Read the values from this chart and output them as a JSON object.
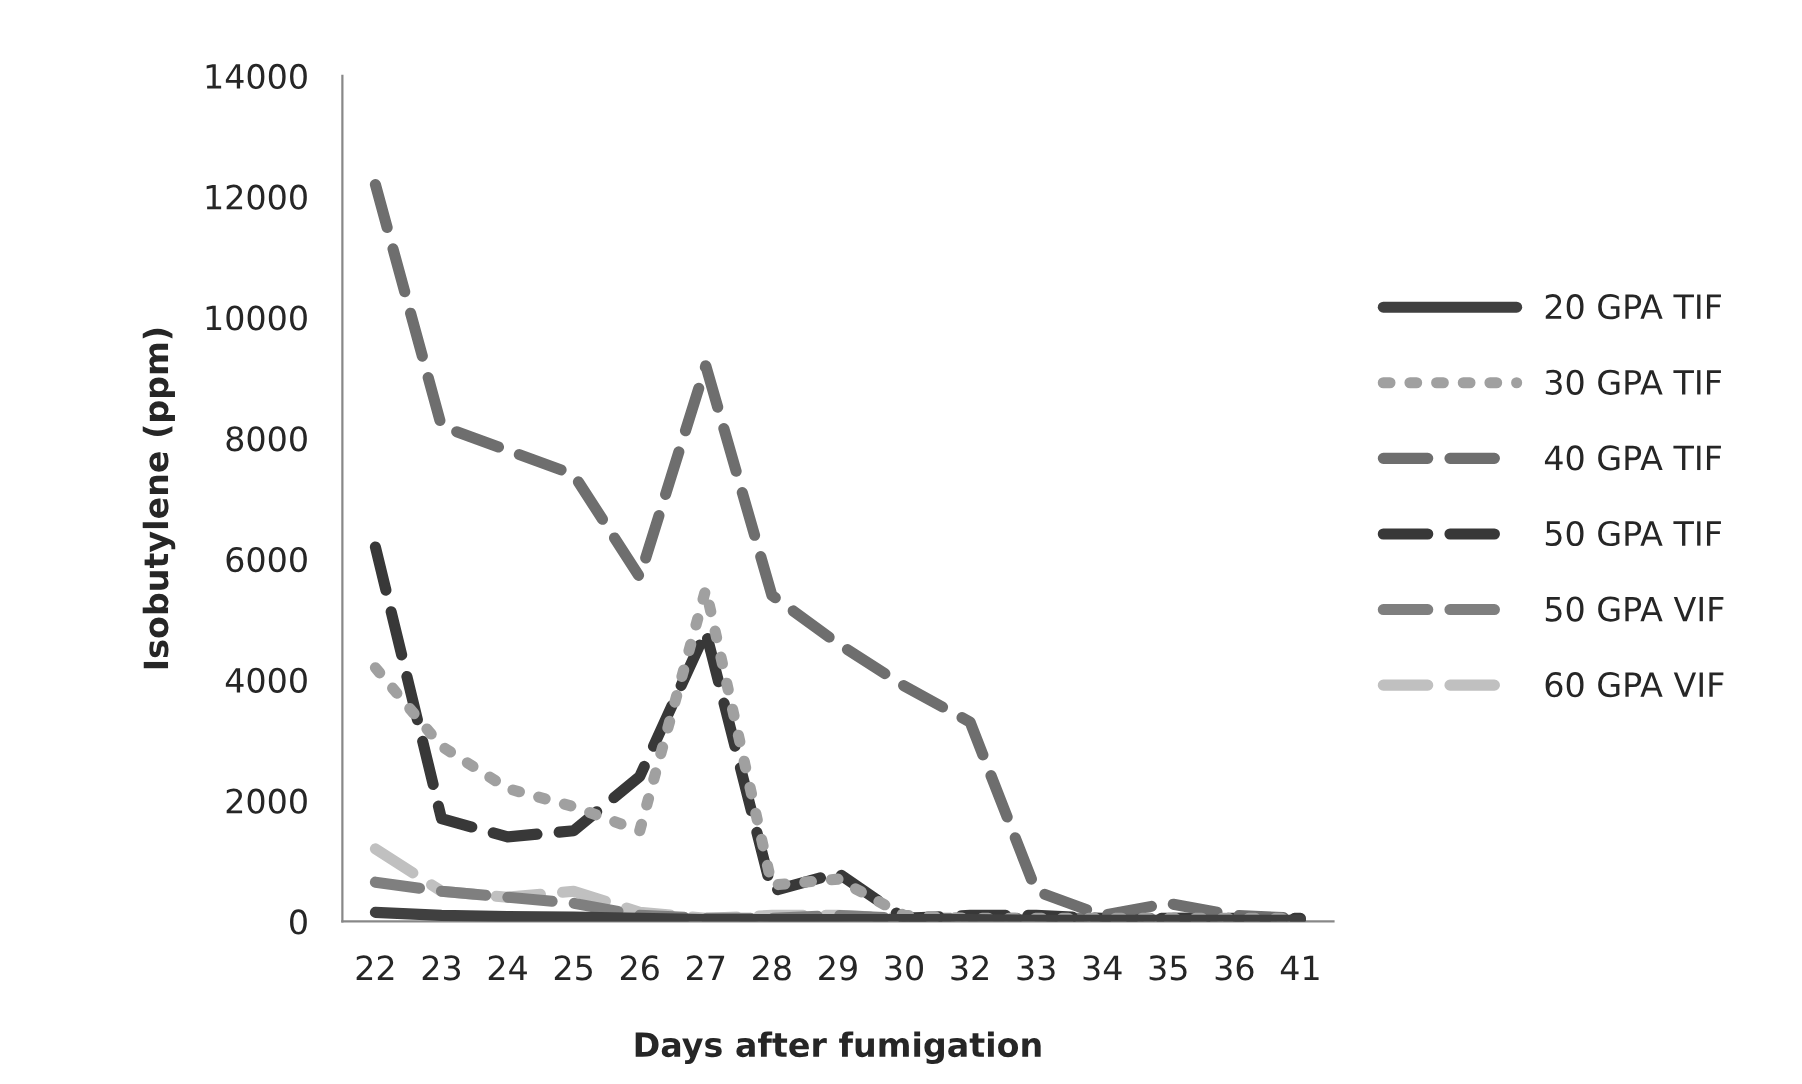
{
  "chart_data": {
    "type": "line",
    "xlabel": "Days after fumigation",
    "ylabel": "Isobutylene (ppm)",
    "categories": [
      "22",
      "23",
      "24",
      "25",
      "26",
      "27",
      "28",
      "29",
      "30",
      "32",
      "33",
      "34",
      "35",
      "36",
      "41"
    ],
    "ylim": [
      0,
      14000
    ],
    "yticks": [
      0,
      2000,
      4000,
      6000,
      8000,
      10000,
      12000,
      14000
    ],
    "grid": false,
    "legend": "right",
    "marker": "none",
    "series": [
      {
        "name": "20 GPA TIF",
        "color": "#404040",
        "line_style": "solid",
        "values": [
          150,
          100,
          80,
          70,
          50,
          30,
          30,
          30,
          30,
          30,
          20,
          20,
          20,
          20,
          20
        ]
      },
      {
        "name": "30 GPA TIF",
        "color": "#a0a0a0",
        "line_style": "dotted",
        "values": [
          4200,
          2900,
          2200,
          1900,
          1500,
          5500,
          600,
          700,
          100,
          50,
          50,
          50,
          50,
          50,
          50
        ]
      },
      {
        "name": "40 GPA TIF",
        "color": "#6e6e6e",
        "line_style": "dashed",
        "values": [
          12200,
          8200,
          7800,
          7400,
          5700,
          9200,
          5400,
          4600,
          3900,
          3300,
          500,
          100,
          300,
          100,
          50
        ]
      },
      {
        "name": "50 GPA TIF",
        "color": "#383838",
        "line_style": "dashed",
        "values": [
          6200,
          1700,
          1400,
          1500,
          2400,
          4800,
          500,
          800,
          50,
          100,
          100,
          50,
          50,
          50,
          50
        ]
      },
      {
        "name": "50 GPA VIF",
        "color": "#7f7f7f",
        "line_style": "dashed",
        "values": [
          650,
          500,
          400,
          300,
          100,
          50,
          50,
          100,
          50,
          50,
          50,
          50,
          50,
          50,
          50
        ]
      },
      {
        "name": "60 GPA VIF",
        "color": "#c0c0c0",
        "line_style": "dashed",
        "values": [
          1200,
          500,
          400,
          500,
          150,
          50,
          100,
          100,
          50,
          50,
          50,
          30,
          30,
          30,
          30
        ]
      }
    ]
  }
}
